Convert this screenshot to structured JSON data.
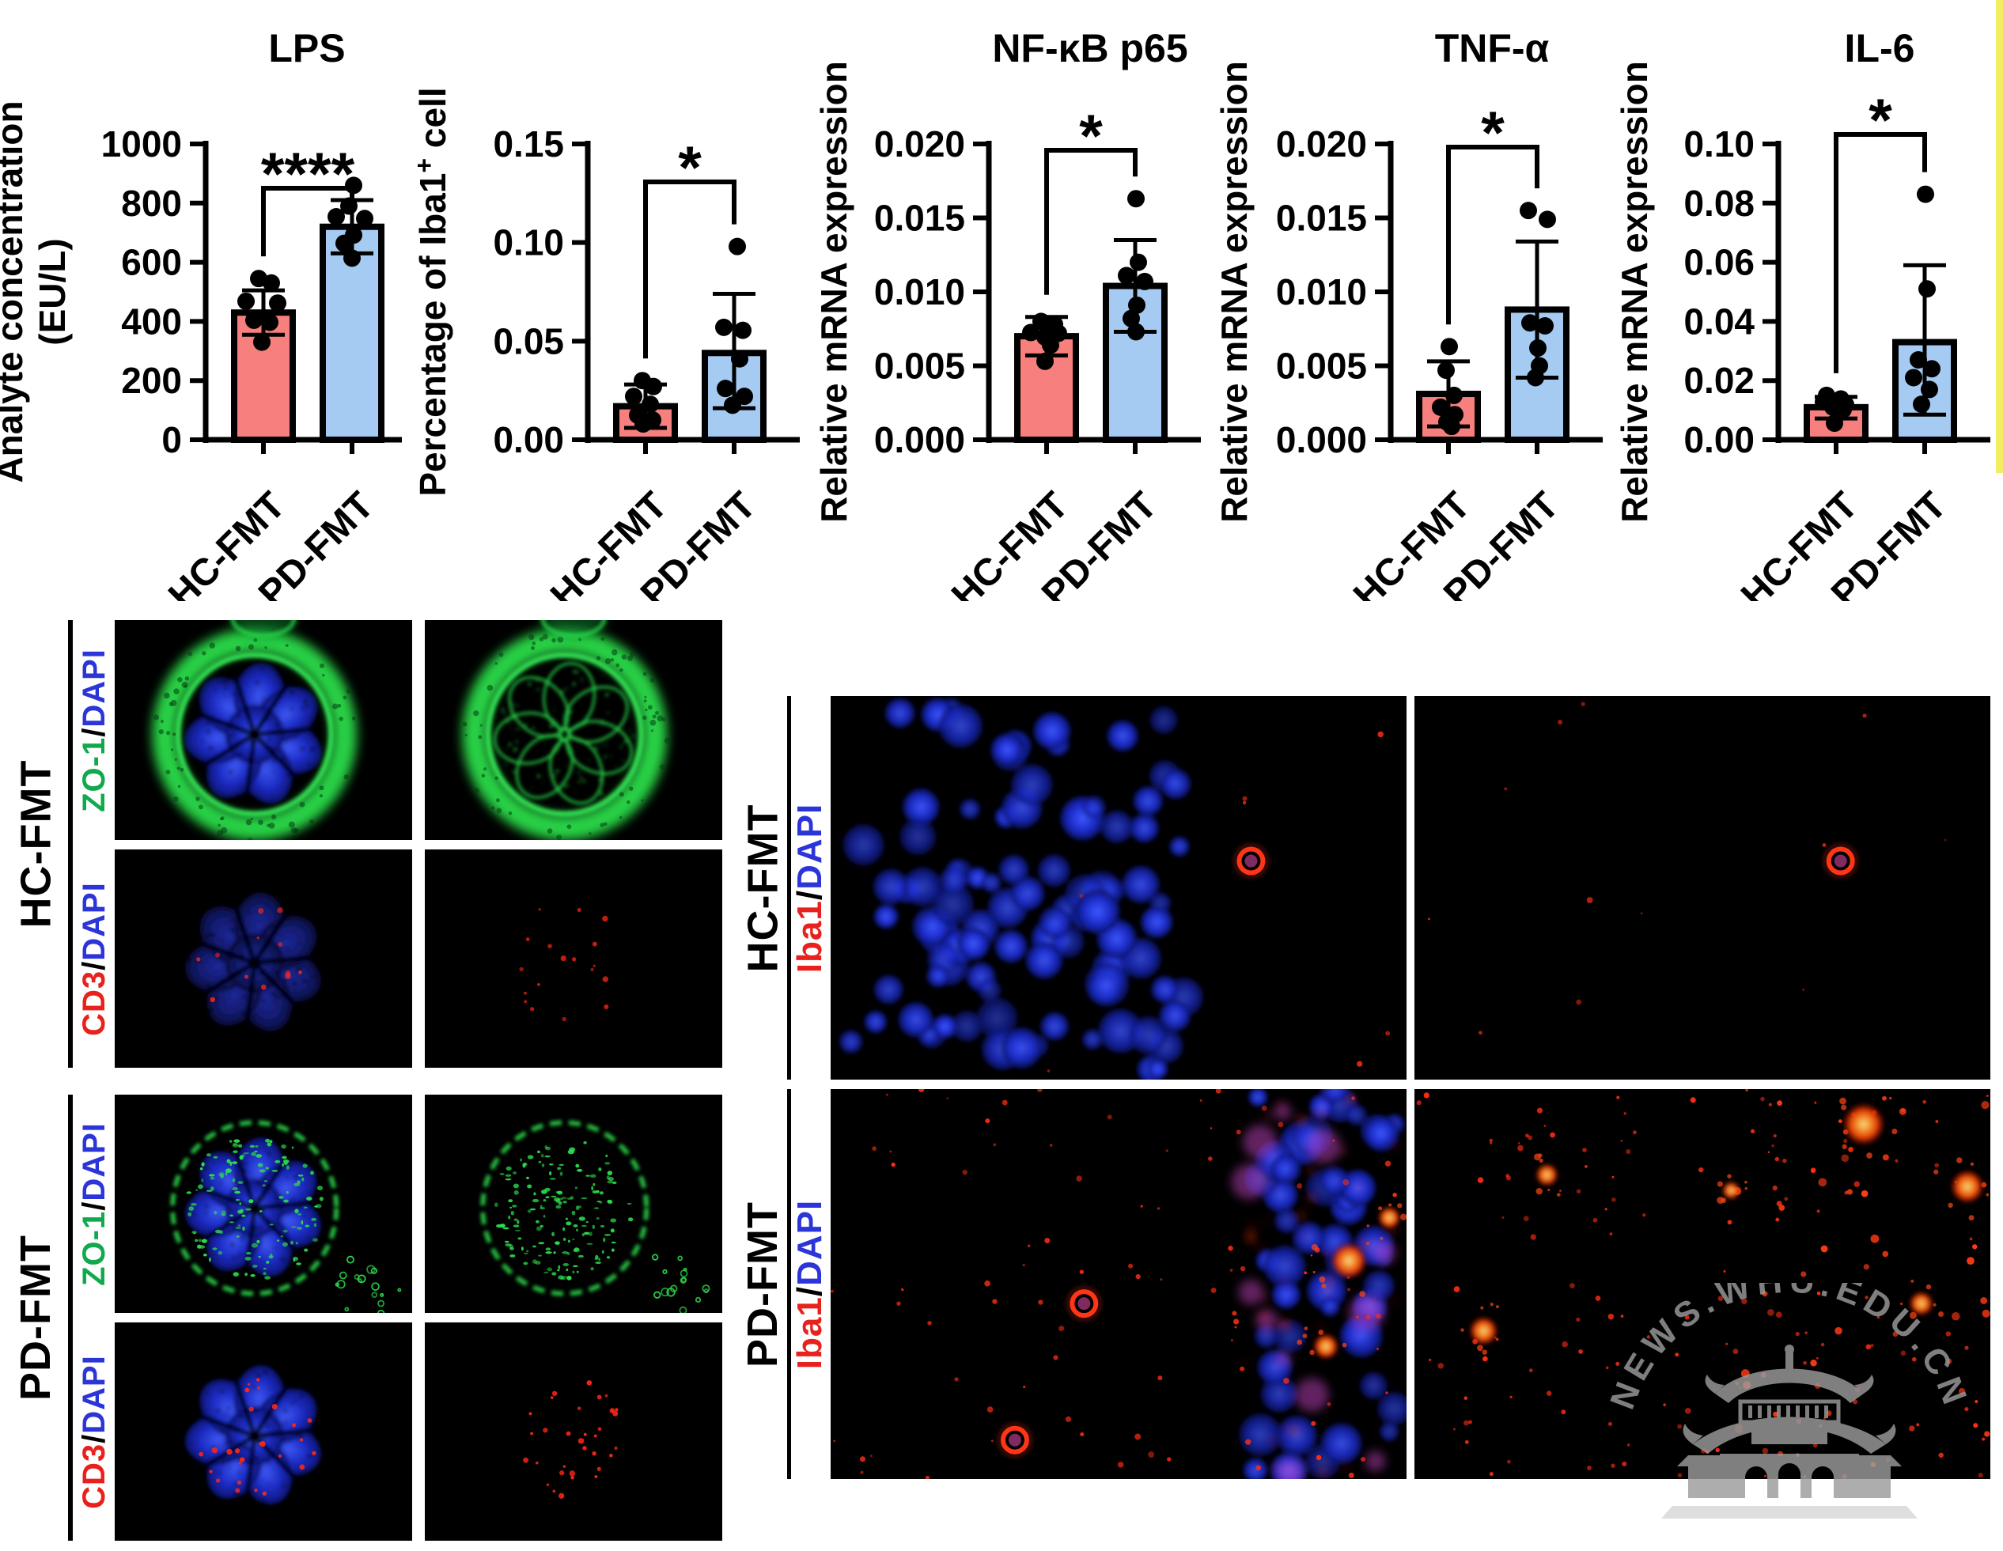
{
  "figure": {
    "background": "#ffffff"
  },
  "colors": {
    "hc_bar": "#f77f7e",
    "pd_bar": "#a6cbf2",
    "bar_border": "#000000",
    "zo1_green": "#12a94e",
    "dapi_blue": "#2b35d8",
    "cd3_red": "#e8211d",
    "iba1_red": "#e8211d",
    "if_green": "#2bdf4b",
    "if_blue": "#2438e8",
    "if_red": "#ff2a16",
    "watermark_gray": "#9b9b9b",
    "edge_strip_yellow": "#f4ec62"
  },
  "chart_data": [
    {
      "type": "bar",
      "title": "LPS",
      "ylabel": "Analyte concentration",
      "ylabel_line2": "(EU/L)",
      "categories": [
        "HC-FMT",
        "PD-FMT"
      ],
      "ylim": [
        0,
        1000
      ],
      "ytick_step": 200,
      "ytick_decimals": 0,
      "significance": "****",
      "grid": false,
      "series": [
        {
          "name": "HC-FMT",
          "mean": 430,
          "sd_low": 355,
          "sd_high": 505,
          "points": [
            [
              -6,
              545
            ],
            [
              10,
              530
            ],
            [
              -22,
              468
            ],
            [
              18,
              462
            ],
            [
              -12,
              404
            ],
            [
              8,
              397
            ],
            [
              -2,
              330
            ]
          ]
        },
        {
          "name": "PD-FMT",
          "mean": 720,
          "sd_low": 630,
          "sd_high": 810,
          "points": [
            [
              2,
              860
            ],
            [
              -4,
              790
            ],
            [
              -20,
              754
            ],
            [
              16,
              748
            ],
            [
              2,
              692
            ],
            [
              -10,
              664
            ],
            [
              0,
              614
            ]
          ]
        }
      ]
    },
    {
      "type": "bar",
      "title": "",
      "ylabel": "Percentage of Iba1",
      "ylabel_sup": "+",
      "ylabel_post": " cell",
      "categories": [
        "HC-FMT",
        "PD-FMT"
      ],
      "ylim": [
        0,
        0.15
      ],
      "ytick_step": 0.05,
      "ytick_decimals": 2,
      "significance": "*",
      "grid": false,
      "series": [
        {
          "name": "HC-FMT",
          "mean": 0.017,
          "sd_low": 0.006,
          "sd_high": 0.028,
          "points": [
            [
              -4,
              0.03
            ],
            [
              10,
              0.027
            ],
            [
              -15,
              0.022
            ],
            [
              6,
              0.018
            ],
            [
              -10,
              0.0125
            ],
            [
              9,
              0.01
            ],
            [
              -3,
              0.008
            ]
          ]
        },
        {
          "name": "PD-FMT",
          "mean": 0.044,
          "sd_low": 0.016,
          "sd_high": 0.074,
          "points": [
            [
              4,
              0.098
            ],
            [
              -13,
              0.057
            ],
            [
              11,
              0.0555
            ],
            [
              7,
              0.041
            ],
            [
              -11,
              0.026
            ],
            [
              13,
              0.022
            ],
            [
              -2,
              0.0175
            ]
          ]
        }
      ]
    },
    {
      "type": "bar",
      "title": "NF-κB p65",
      "ylabel": "Relative mRNA expression",
      "categories": [
        "HC-FMT",
        "PD-FMT"
      ],
      "ylim": [
        0,
        0.02
      ],
      "ytick_step": 0.005,
      "ytick_decimals": 3,
      "significance": "*",
      "grid": false,
      "series": [
        {
          "name": "HC-FMT",
          "mean": 0.007,
          "sd_low": 0.0057,
          "sd_high": 0.0083,
          "points": [
            [
              -7,
              0.008
            ],
            [
              10,
              0.0078
            ],
            [
              -20,
              0.00725
            ],
            [
              15,
              0.0072
            ],
            [
              -2,
              0.00695
            ],
            [
              5,
              0.0064
            ],
            [
              -2,
              0.0053
            ]
          ]
        },
        {
          "name": "PD-FMT",
          "mean": 0.0104,
          "sd_low": 0.0073,
          "sd_high": 0.0135,
          "points": [
            [
              1,
              0.0163
            ],
            [
              4,
              0.012
            ],
            [
              -11,
              0.0111
            ],
            [
              12,
              0.0107
            ],
            [
              2,
              0.0091
            ],
            [
              -5,
              0.0082
            ],
            [
              1,
              0.0073
            ]
          ]
        }
      ]
    },
    {
      "type": "bar",
      "title": "TNF-α",
      "ylabel": "Relative mRNA expression",
      "categories": [
        "HC-FMT",
        "PD-FMT"
      ],
      "ylim": [
        0,
        0.02
      ],
      "ytick_step": 0.005,
      "ytick_decimals": 3,
      "significance": "*",
      "grid": false,
      "series": [
        {
          "name": "HC-FMT",
          "mean": 0.0031,
          "sd_low": 0.0009,
          "sd_high": 0.0053,
          "points": [
            [
              1,
              0.0063
            ],
            [
              -3,
              0.0047
            ],
            [
              7,
              0.003
            ],
            [
              -10,
              0.0022
            ],
            [
              8,
              0.0017
            ],
            [
              -2,
              0.0012
            ],
            [
              4,
              0.0009
            ]
          ]
        },
        {
          "name": "PD-FMT",
          "mean": 0.0088,
          "sd_low": 0.0042,
          "sd_high": 0.0134,
          "points": [
            [
              -11,
              0.0155
            ],
            [
              13,
              0.0149
            ],
            [
              -9,
              0.0079
            ],
            [
              10,
              0.0077
            ],
            [
              1,
              0.0062
            ],
            [
              3,
              0.005
            ],
            [
              -2,
              0.0042
            ]
          ]
        }
      ]
    },
    {
      "type": "bar",
      "title": "IL-6",
      "ylabel": "Relative mRNA expression",
      "categories": [
        "HC-FMT",
        "PD-FMT"
      ],
      "ylim": [
        0,
        0.1
      ],
      "ytick_step": 0.02,
      "ytick_decimals": 2,
      "significance": "*",
      "grid": false,
      "series": [
        {
          "name": "HC-FMT",
          "mean": 0.011,
          "sd_low": 0.0072,
          "sd_high": 0.0145,
          "points": [
            [
              -12,
              0.015
            ],
            [
              6,
              0.0138
            ],
            [
              -16,
              0.0128
            ],
            [
              12,
              0.0119
            ],
            [
              -4,
              0.011
            ],
            [
              9,
              0.0102
            ],
            [
              -2,
              0.0056
            ]
          ]
        },
        {
          "name": "PD-FMT",
          "mean": 0.033,
          "sd_low": 0.0085,
          "sd_high": 0.059,
          "points": [
            [
              1,
              0.083
            ],
            [
              3,
              0.051
            ],
            [
              -8,
              0.027
            ],
            [
              9,
              0.024
            ],
            [
              -14,
              0.021
            ],
            [
              6,
              0.017
            ],
            [
              -4,
              0.012
            ]
          ]
        }
      ]
    }
  ],
  "micro_left": {
    "groups": [
      {
        "label": "HC-FMT",
        "rows": [
          {
            "label_parts": [
              [
                "ZO-1",
                "#12a94e"
              ],
              [
                "/",
                "#000000"
              ],
              [
                "DAPI",
                "#2b35d8"
              ]
            ],
            "images": [
              {
                "name": "hc-zo1-dapi-merge"
              },
              {
                "name": "hc-zo1-channel"
              }
            ]
          },
          {
            "label_parts": [
              [
                "CD3",
                "#e8211d"
              ],
              [
                "/",
                "#000000"
              ],
              [
                "DAPI",
                "#2b35d8"
              ]
            ],
            "images": [
              {
                "name": "hc-cd3-dapi-merge"
              },
              {
                "name": "hc-cd3-channel"
              }
            ]
          }
        ]
      },
      {
        "label": "PD-FMT",
        "rows": [
          {
            "label_parts": [
              [
                "ZO-1",
                "#12a94e"
              ],
              [
                "/",
                "#000000"
              ],
              [
                "DAPI",
                "#2b35d8"
              ]
            ],
            "images": [
              {
                "name": "pd-zo1-dapi-merge"
              },
              {
                "name": "pd-zo1-channel"
              }
            ]
          },
          {
            "label_parts": [
              [
                "CD3",
                "#e8211d"
              ],
              [
                "/",
                "#000000"
              ],
              [
                "DAPI",
                "#2b35d8"
              ]
            ],
            "images": [
              {
                "name": "pd-cd3-dapi-merge"
              },
              {
                "name": "pd-cd3-channel"
              }
            ]
          }
        ]
      }
    ]
  },
  "micro_right": {
    "groups": [
      {
        "label": "HC-FMT",
        "label_parts": [
          [
            "Iba1",
            "#e8211d"
          ],
          [
            "/",
            "#000000"
          ],
          [
            "DAPI",
            "#2b35d8"
          ]
        ],
        "images": [
          {
            "name": "hc-iba1-dapi-merge"
          },
          {
            "name": "hc-iba1-channel"
          }
        ]
      },
      {
        "label": "PD-FMT",
        "label_parts": [
          [
            "Iba1",
            "#e8211d"
          ],
          [
            "/",
            "#000000"
          ],
          [
            "DAPI",
            "#2b35d8"
          ]
        ],
        "images": [
          {
            "name": "pd-iba1-dapi-merge"
          },
          {
            "name": "pd-iba1-channel"
          }
        ]
      }
    ]
  },
  "watermark": {
    "text": "NEWS.WHU.EDU.CN",
    "icon": "pagoda-icon"
  }
}
